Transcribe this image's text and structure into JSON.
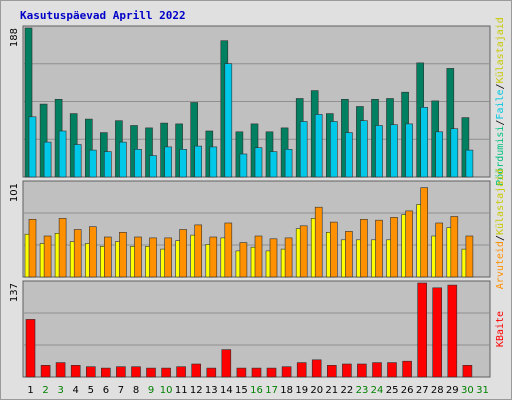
{
  "title": "Kasutuspäevad Aprill 2022",
  "chart_data": [
    {
      "type": "bar",
      "panel": "top",
      "y_max_label": "188",
      "ylim": [
        0,
        188
      ],
      "grid": true,
      "legend": [
        {
          "label": "Pöördumisi",
          "color": "#00c080"
        },
        {
          "label": "/",
          "color": "#000000"
        },
        {
          "label": "Faile",
          "color": "#00c8e0"
        },
        {
          "label": "/",
          "color": "#000000"
        },
        {
          "label": "Külastajaid",
          "color": "#c8c800"
        }
      ],
      "categories": [
        "1",
        "2",
        "3",
        "4",
        "5",
        "6",
        "7",
        "8",
        "9",
        "10",
        "11",
        "12",
        "13",
        "14",
        "15",
        "16",
        "17",
        "18",
        "19",
        "20",
        "21",
        "22",
        "23",
        "24",
        "25",
        "26",
        "27",
        "28",
        "29",
        "30",
        "31"
      ],
      "series": [
        {
          "name": "Pöördumisi",
          "color": "#008060",
          "values": [
            188,
            92,
            98,
            80,
            73,
            56,
            71,
            65,
            62,
            68,
            67,
            94,
            58,
            172,
            57,
            67,
            57,
            62,
            99,
            109,
            80,
            98,
            89,
            98,
            99,
            107,
            144,
            96,
            137,
            75,
            0
          ]
        },
        {
          "name": "Faile",
          "color": "#00c8e8",
          "values": [
            76,
            44,
            58,
            41,
            34,
            32,
            44,
            35,
            27,
            38,
            35,
            39,
            38,
            143,
            29,
            37,
            32,
            35,
            70,
            79,
            70,
            56,
            71,
            65,
            66,
            67,
            88,
            57,
            61,
            34,
            0
          ]
        }
      ]
    },
    {
      "type": "bar",
      "panel": "middle",
      "y_max_label": "101",
      "ylim": [
        0,
        101
      ],
      "grid": true,
      "legend": [
        {
          "label": "Arvuteid",
          "color": "#ff9000"
        },
        {
          "label": "/",
          "color": "#000000"
        },
        {
          "label": "Külastajaid",
          "color": "#c8c800"
        }
      ],
      "series": [
        {
          "name": "Külastajaid",
          "color": "#ffff00",
          "values": [
            46,
            36,
            47,
            38,
            36,
            33,
            38,
            33,
            33,
            30,
            39,
            45,
            35,
            42,
            28,
            32,
            28,
            30,
            52,
            63,
            48,
            40,
            40,
            40,
            40,
            67,
            78,
            44,
            53,
            30,
            0
          ]
        },
        {
          "name": "Arvuteid",
          "color": "#ff9000",
          "values": [
            62,
            44,
            63,
            51,
            54,
            43,
            48,
            43,
            42,
            42,
            51,
            56,
            43,
            58,
            37,
            44,
            41,
            42,
            55,
            75,
            59,
            49,
            62,
            61,
            64,
            71,
            96,
            58,
            65,
            44,
            0
          ]
        }
      ]
    },
    {
      "type": "bar",
      "panel": "bottom",
      "y_max_label": "137",
      "ylim": [
        0,
        137
      ],
      "grid": true,
      "legend": [
        {
          "label": "KBaite",
          "color": "#ff0000"
        }
      ],
      "series": [
        {
          "name": "KBaite",
          "color": "#ff0000",
          "values": [
            84,
            17,
            21,
            17,
            15,
            13,
            15,
            15,
            13,
            13,
            15,
            19,
            13,
            40,
            13,
            13,
            13,
            15,
            21,
            25,
            17,
            19,
            19,
            21,
            21,
            23,
            137,
            130,
            134,
            17,
            0
          ]
        }
      ]
    }
  ],
  "x_labels": {
    "weekday_color": "#000000",
    "weekend_color": "#008000"
  }
}
